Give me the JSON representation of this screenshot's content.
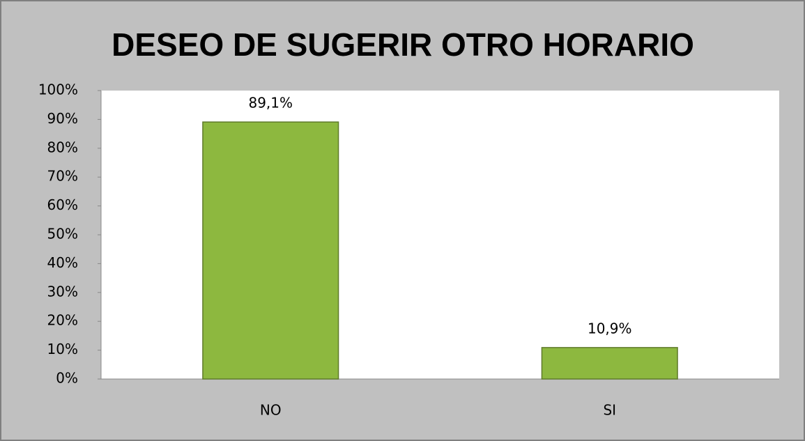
{
  "chart_data": {
    "type": "bar",
    "title": "DESEO DE SUGERIR OTRO HORARIO",
    "categories": [
      "NO",
      "SI"
    ],
    "values": [
      89.1,
      10.9
    ],
    "value_labels": [
      "89,1%",
      "10,9%"
    ],
    "color": "#8db83f",
    "ylim": [
      0,
      100
    ],
    "yticks": [
      {
        "value": 0,
        "label": "0%"
      },
      {
        "value": 10,
        "label": "10%"
      },
      {
        "value": 20,
        "label": "20%"
      },
      {
        "value": 30,
        "label": "30%"
      },
      {
        "value": 40,
        "label": "40%"
      },
      {
        "value": 50,
        "label": "50%"
      },
      {
        "value": 60,
        "label": "60%"
      },
      {
        "value": 70,
        "label": "70%"
      },
      {
        "value": 80,
        "label": "80%"
      },
      {
        "value": 90,
        "label": "90%"
      },
      {
        "value": 100,
        "label": "100%"
      }
    ],
    "grid": false
  }
}
